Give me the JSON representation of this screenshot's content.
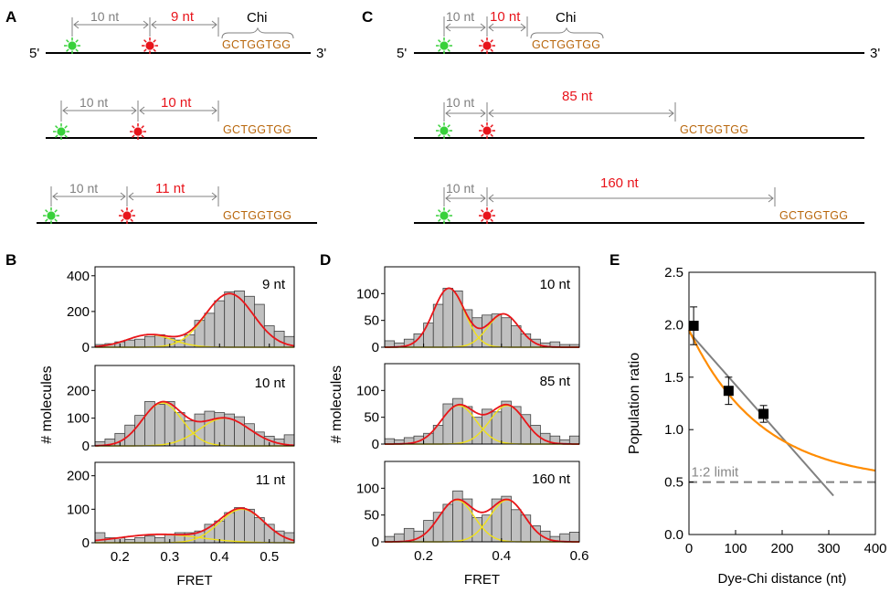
{
  "panels": {
    "A": "A",
    "B": "B",
    "C": "C",
    "D": "D",
    "E": "E"
  },
  "schematics": {
    "five_prime": "5'",
    "three_prime": "3'",
    "chi_label": "Chi",
    "chi_seq": "GCTGGTGG",
    "spacer": "10 nt",
    "A_rows": [
      "9 nt",
      "10 nt",
      "11 nt"
    ],
    "C_rows": [
      "10 nt",
      "85 nt",
      "160 nt"
    ]
  },
  "colors": {
    "histogram_fill": "#c0c0c0",
    "gaussian_component": "#f2e21a",
    "gaussian_sum": "#e8141b",
    "donor": "#38d13a",
    "acceptor": "#e8141b",
    "chi_sequence": "#b8660b",
    "fit_orange": "#ff8c00",
    "fit_grey": "#808080"
  },
  "chart_data": [
    {
      "type": "bar",
      "panel": "B",
      "xlabel": "FRET",
      "ylabel": "# molecules",
      "xlim": [
        0.15,
        0.55
      ],
      "xticks": [
        "0.2",
        "0.3",
        "0.4",
        "0.5"
      ],
      "bin_starts": [
        0.15,
        0.17,
        0.19,
        0.21,
        0.23,
        0.25,
        0.27,
        0.29,
        0.31,
        0.33,
        0.35,
        0.37,
        0.39,
        0.41,
        0.43,
        0.45,
        0.47,
        0.49,
        0.51,
        0.53
      ],
      "subplots": [
        {
          "label": "9 nt",
          "ylim": [
            0,
            450
          ],
          "yticks": [
            "0",
            "200",
            "400"
          ],
          "values": [
            15,
            20,
            30,
            40,
            45,
            60,
            70,
            50,
            40,
            70,
            150,
            190,
            260,
            310,
            315,
            285,
            240,
            120,
            90,
            60
          ],
          "gaussians": [
            {
              "amp": 70,
              "mu": 0.26,
              "sigma": 0.045
            },
            {
              "amp": 300,
              "mu": 0.42,
              "sigma": 0.048
            }
          ]
        },
        {
          "label": "10 nt",
          "ylim": [
            0,
            290
          ],
          "yticks": [
            "0",
            "100",
            "200"
          ],
          "values": [
            15,
            25,
            45,
            75,
            110,
            160,
            150,
            160,
            120,
            90,
            115,
            125,
            120,
            115,
            105,
            80,
            50,
            35,
            25,
            40
          ],
          "gaussians": [
            {
              "amp": 155,
              "mu": 0.285,
              "sigma": 0.04
            },
            {
              "amp": 100,
              "mu": 0.41,
              "sigma": 0.05
            }
          ]
        },
        {
          "label": "11 nt",
          "ylim": [
            0,
            240
          ],
          "yticks": [
            "0",
            "100",
            "200"
          ],
          "values": [
            30,
            15,
            15,
            10,
            15,
            20,
            15,
            25,
            30,
            30,
            35,
            55,
            65,
            90,
            105,
            100,
            75,
            55,
            35,
            30
          ],
          "gaussians": [
            {
              "amp": 25,
              "mu": 0.28,
              "sigma": 0.08
            },
            {
              "amp": 100,
              "mu": 0.445,
              "sigma": 0.045
            }
          ]
        }
      ]
    },
    {
      "type": "bar",
      "panel": "D",
      "xlabel": "FRET",
      "ylabel": "# molecules",
      "xlim": [
        0.1,
        0.6
      ],
      "xticks": [
        "0.2",
        "0.4",
        "0.6"
      ],
      "bin_starts": [
        0.1,
        0.125,
        0.15,
        0.175,
        0.2,
        0.225,
        0.25,
        0.275,
        0.3,
        0.325,
        0.35,
        0.375,
        0.4,
        0.425,
        0.45,
        0.475,
        0.5,
        0.525,
        0.55,
        0.575
      ],
      "subplots": [
        {
          "label": "10 nt",
          "ylim": [
            0,
            150
          ],
          "yticks": [
            "0",
            "50",
            "100"
          ],
          "values": [
            12,
            8,
            15,
            25,
            45,
            80,
            110,
            105,
            70,
            55,
            60,
            62,
            55,
            40,
            25,
            15,
            8,
            10,
            5,
            5
          ],
          "gaussians": [
            {
              "amp": 110,
              "mu": 0.265,
              "sigma": 0.04
            },
            {
              "amp": 62,
              "mu": 0.405,
              "sigma": 0.04
            }
          ]
        },
        {
          "label": "85 nt",
          "ylim": [
            0,
            150
          ],
          "yticks": [
            "0",
            "50",
            "100"
          ],
          "values": [
            10,
            8,
            12,
            15,
            20,
            35,
            75,
            85,
            70,
            50,
            65,
            60,
            80,
            70,
            55,
            35,
            20,
            15,
            8,
            15
          ],
          "gaussians": [
            {
              "amp": 72,
              "mu": 0.29,
              "sigma": 0.045
            },
            {
              "amp": 72,
              "mu": 0.415,
              "sigma": 0.045
            }
          ]
        },
        {
          "label": "160 nt",
          "ylim": [
            0,
            150
          ],
          "yticks": [
            "0",
            "50",
            "100"
          ],
          "values": [
            10,
            15,
            25,
            20,
            40,
            55,
            70,
            95,
            80,
            45,
            50,
            80,
            85,
            60,
            50,
            30,
            20,
            10,
            15,
            18
          ],
          "gaussians": [
            {
              "amp": 78,
              "mu": 0.285,
              "sigma": 0.045
            },
            {
              "amp": 78,
              "mu": 0.415,
              "sigma": 0.045
            }
          ]
        }
      ]
    },
    {
      "type": "scatter",
      "panel": "E",
      "xlabel": "Dye-Chi distance (nt)",
      "ylabel": "Population ratio",
      "xlim": [
        0,
        400
      ],
      "ylim": [
        0,
        2.5
      ],
      "xticks": [
        "0",
        "100",
        "200",
        "300",
        "400"
      ],
      "yticks": [
        "0.0",
        "0.5",
        "1.0",
        "1.5",
        "2.0",
        "2.5"
      ],
      "points": [
        {
          "x": 10,
          "y": 1.99,
          "err": 0.18
        },
        {
          "x": 85,
          "y": 1.37,
          "err": 0.13
        },
        {
          "x": 160,
          "y": 1.15,
          "err": 0.08
        }
      ],
      "limit_value": 0.5,
      "limit_label": "1:2 limit",
      "fit_exp": {
        "A": 1.45,
        "k": 0.00645,
        "offset": 0.5
      },
      "fit_linear": {
        "x0": 0,
        "y0": 1.93,
        "x1": 310,
        "y1": 0.37
      }
    }
  ]
}
